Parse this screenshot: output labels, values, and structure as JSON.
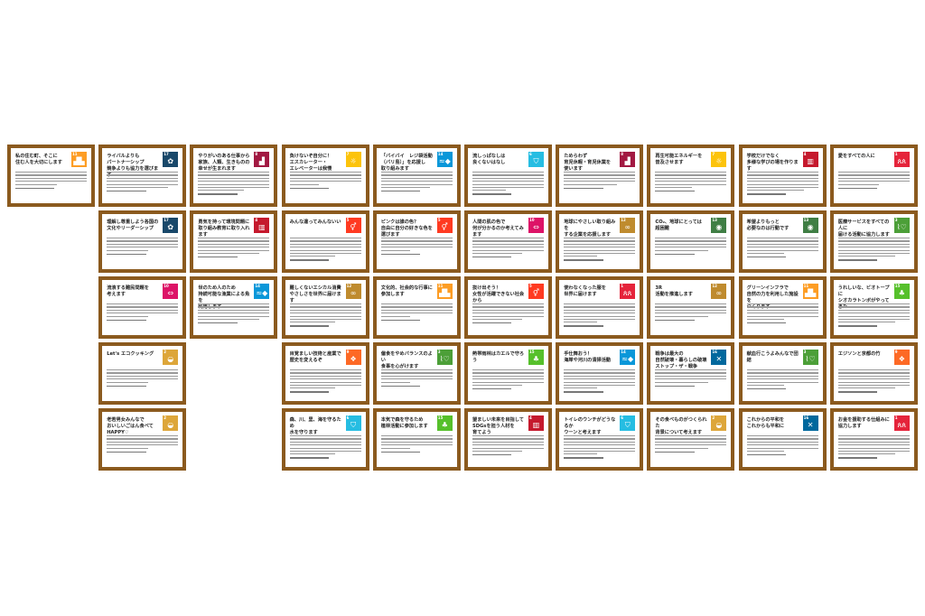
{
  "sdg_colors": {
    "1": "#e5243b",
    "2": "#dda63a",
    "3": "#4c9f38",
    "4": "#c5192d",
    "5": "#ff3a21",
    "6": "#26bde2",
    "7": "#fcc30b",
    "8": "#a21942",
    "9": "#fd6925",
    "10": "#dd1367",
    "11": "#fd9d24",
    "12": "#bf8b2e",
    "13": "#3f7e44",
    "14": "#0a97d9",
    "15": "#56c02b",
    "16": "#00689d",
    "17": "#19486a"
  },
  "border_color": "#8b5a1e",
  "rows": [
    [
      {
        "title": "私の住む町、そこに\n住む人を大切にします",
        "goal": 11,
        "icon": "city-icon"
      },
      {
        "title": "ライバルよりも\nパートナーシップ\n競争よりも協力を選びます",
        "goal": 17,
        "icon": "partnership-icon"
      },
      {
        "title": "やりがいのある仕事から\n家族、人類、生きものの\n幸せが生まれます",
        "goal": 8,
        "icon": "growth-chart-icon"
      },
      {
        "title": "負けないぞ自分に！\nエスカレーター・\nエレベーターは我慢",
        "goal": 7,
        "icon": "sun-energy-icon"
      },
      {
        "title": "「バイバイ　レジ袋活動\n（バリ島）」を応援し\n取り組みます",
        "goal": 14,
        "icon": "fish-icon"
      },
      {
        "title": "流しっぱなしは\n良くないはなし",
        "goal": 6,
        "icon": "water-tap-icon"
      },
      {
        "title": "ためらわず\n育児休暇・育児休業を\n使います",
        "goal": 8,
        "icon": "growth-chart-icon"
      },
      {
        "title": "再生可能エネルギーを\n普及させます",
        "goal": 7,
        "icon": "sun-energy-icon"
      },
      {
        "title": "学校だけでなく\n多様な学びの場を作ります",
        "goal": 4,
        "icon": "book-icon"
      },
      {
        "title": "愛をすべての人に",
        "goal": 1,
        "icon": "family-icon"
      }
    ],
    [
      {
        "title": "理解し尊重しよう各国の\n文化やリーダーシップ",
        "goal": 17,
        "icon": "partnership-icon"
      },
      {
        "title": "勇気を持って環境問題に\n取り組み教育に取り入れます",
        "goal": 4,
        "icon": "book-icon"
      },
      {
        "title": "みんな違ってみんないい",
        "goal": 5,
        "icon": "gender-icon"
      },
      {
        "title": "ピンクは誰の色？\n自由に自分の好きな色を\n選びます",
        "goal": 5,
        "icon": "gender-icon"
      },
      {
        "title": "人間の肌の色で\n何が分かるのか考えてみます",
        "goal": 10,
        "icon": "equality-icon"
      },
      {
        "title": "地球にやさしい取り組みを\nする企業を応援します",
        "goal": 12,
        "icon": "infinity-icon"
      },
      {
        "title": "CO₂、地球にとっては\n超困難",
        "goal": 13,
        "icon": "eye-globe-icon"
      },
      {
        "title": "希望よりもっと\n必要なのは行動です",
        "goal": 13,
        "icon": "eye-globe-icon"
      },
      {
        "title": "医療サービスをすべての人に\n届ける活動に協力します",
        "goal": 3,
        "icon": "heartbeat-icon"
      }
    ],
    [
      {
        "title": "流浪する難民問題を\n考えます",
        "goal": 10,
        "icon": "equality-icon"
      },
      {
        "title": "世のため人のため\n持続可能な漁業による魚を\n利用します",
        "goal": 14,
        "icon": "fish-icon"
      },
      {
        "title": "難しくないエシカル消費\nやさしさを世界に届けます",
        "goal": 12,
        "icon": "infinity-icon"
      },
      {
        "title": "文化的、社会的な行事に\n参加します",
        "goal": 11,
        "icon": "city-icon"
      },
      {
        "title": "抜け出そう！\n女性が活躍できない社会から",
        "goal": 5,
        "icon": "gender-icon"
      },
      {
        "title": "使わなくなった服を\n世界に届けます",
        "goal": 1,
        "icon": "family-icon"
      },
      {
        "title": "3R\n活動を推進します",
        "goal": 12,
        "icon": "infinity-icon"
      },
      {
        "title": "グリーンインフラで\n自然の力を利用した施設を\nつくります",
        "goal": 11,
        "icon": "city-icon"
      },
      {
        "title": "うれしいな、ビオトープに\nシオカラトンボがやってきた",
        "goal": 15,
        "icon": "tree-icon"
      }
    ],
    [
      {
        "title": "Let's エコクッキング",
        "goal": 2,
        "icon": "bowl-icon"
      },
      null,
      {
        "title": "目覚ましい技術と産業で\n歴史を変えるぞ",
        "goal": 9,
        "icon": "industry-cubes-icon"
      },
      {
        "title": "偏食をやめバランスのよい\n食事を心がけます",
        "goal": 3,
        "icon": "heartbeat-icon"
      },
      {
        "title": "熱帯雨林はカエルで守ろう",
        "goal": 15,
        "icon": "tree-icon"
      },
      {
        "title": "手仕舞おう！\n海岸や河川の清掃活動",
        "goal": 14,
        "icon": "fish-icon"
      },
      {
        "title": "戦争は最大の\n自然破壊・暮らしの破壊\nストップ・ザ・戦争",
        "goal": 16,
        "icon": "dove-gavel-icon"
      },
      {
        "title": "献血行こうよみんなで団結",
        "goal": 3,
        "icon": "heartbeat-icon"
      },
      {
        "title": "エジソンと京都の竹",
        "goal": 9,
        "icon": "industry-cubes-icon"
      }
    ],
    [
      {
        "title": "老若男女みんなで\nおいしいごはん食べて\nHAPPY♡",
        "goal": 2,
        "icon": "bowl-icon"
      },
      null,
      {
        "title": "森、川、里、海を守るため\n水を守ります",
        "goal": 6,
        "icon": "water-tap-icon"
      },
      {
        "title": "本気で森を守るため\n植林活動に参加します",
        "goal": 15,
        "icon": "tree-icon"
      },
      {
        "title": "望ましい未来を目指して\nSDGsを担う人材を\n育てよう",
        "goal": 4,
        "icon": "book-icon"
      },
      {
        "title": "トイレのウンチがどうなるか\nウーンと考えます",
        "goal": 6,
        "icon": "water-tap-icon"
      },
      {
        "title": "その食べものがつくられた\n背景について考えます",
        "goal": 2,
        "icon": "bowl-icon"
      },
      {
        "title": "これからの平和を\nこれからも平和に",
        "goal": 16,
        "icon": "dove-gavel-icon"
      },
      {
        "title": "お金を援助する仕組みに\n協力します",
        "goal": 1,
        "icon": "family-icon"
      }
    ]
  ]
}
